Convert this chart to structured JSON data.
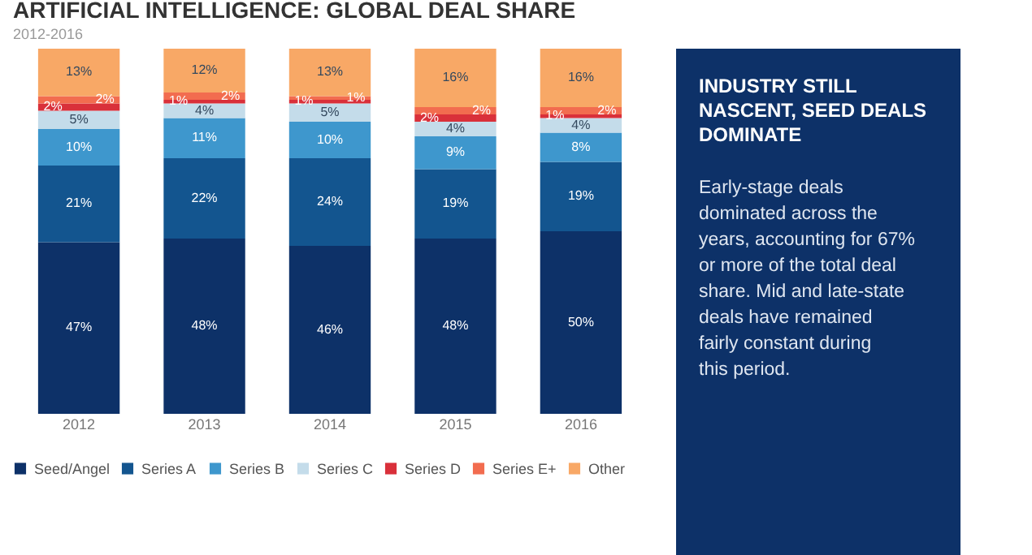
{
  "chart_data": [
    {
      "type": "bar",
      "title": "ARTIFICIAL INTELLIGENCE: GLOBAL DEAL SHARE",
      "subtitle": "2012-2016",
      "categories": [
        "2012",
        "2013",
        "2014",
        "2015",
        "2016"
      ],
      "stacked": true,
      "legend": "bottom",
      "grid": false,
      "tick_labels": "x",
      "series": [
        {
          "name": "Seed/Angel",
          "color": "#0d3168",
          "values": [
            47,
            48,
            46,
            48,
            50
          ],
          "value_labels": [
            "47%",
            "48%",
            "46%",
            "48%",
            "50%"
          ]
        },
        {
          "name": "Series A",
          "color": "#13558f",
          "values": [
            21,
            22,
            24,
            19,
            19
          ],
          "value_labels": [
            "21%",
            "22%",
            "24%",
            "19%",
            "19%"
          ]
        },
        {
          "name": "Series B",
          "color": "#3e97cd",
          "values": [
            10,
            11,
            10,
            9,
            8
          ],
          "value_labels": [
            "10%",
            "11%",
            "10%",
            "9%",
            "8%"
          ]
        },
        {
          "name": "Series C",
          "color": "#c4dcea",
          "values": [
            5,
            4,
            5,
            4,
            4
          ],
          "value_labels": [
            "5%",
            "4%",
            "5%",
            "4%",
            "4%"
          ]
        },
        {
          "name": "Series D",
          "color": "#d9303a",
          "values": [
            2,
            1,
            1,
            2,
            1
          ],
          "value_labels": [
            "2%",
            "1%",
            "1%",
            "2%",
            "1%"
          ]
        },
        {
          "name": "Series E+",
          "color": "#f26c4f",
          "values": [
            2,
            2,
            1,
            2,
            2
          ],
          "value_labels": [
            "2%",
            "2%",
            "1%",
            "2%",
            "2%"
          ]
        },
        {
          "name": "Other",
          "color": "#f8a866",
          "values": [
            13,
            12,
            13,
            16,
            16
          ],
          "value_labels": [
            "13%",
            "12%",
            "13%",
            "16%",
            "16%"
          ]
        }
      ]
    },
    {
      "type": "other",
      "title": "INDUSTRY STILL NASCENT, SEED DEALS DOMINATE",
      "annotations": [
        "Early-stage deals dominated across the years, accounting for 67% or more of the total deal share. Mid and late-state deals have remained fairly constant during this period."
      ]
    }
  ]
}
